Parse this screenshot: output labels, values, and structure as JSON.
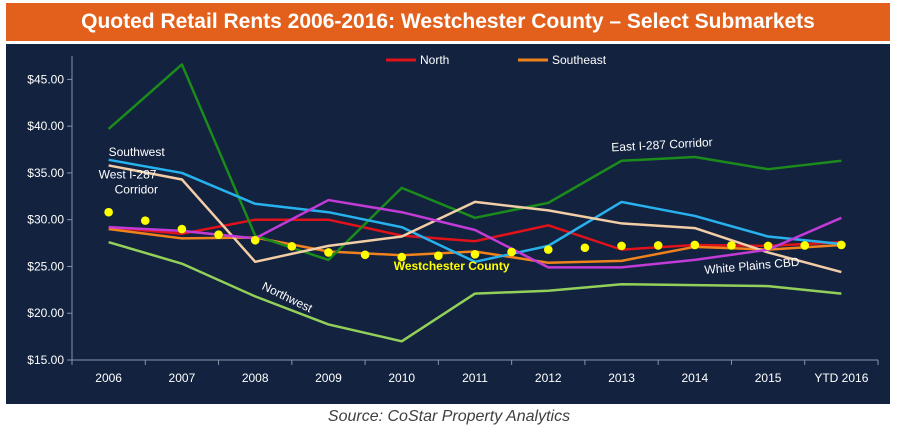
{
  "title": "Quoted Retail Rents 2006-2016:  Westchester County – Select Submarkets",
  "source": "Source:  CoStar Property Analytics",
  "chart_data": {
    "type": "line",
    "categories": [
      "2006",
      "2007",
      "2008",
      "2009",
      "2010",
      "2011",
      "2012",
      "2013",
      "2014",
      "2015",
      "YTD 2016"
    ],
    "ylim": [
      15,
      47.5
    ],
    "yticks": [
      15,
      20,
      25,
      30,
      35,
      40,
      45
    ],
    "ytick_labels": [
      "$15.00",
      "$20.00",
      "$25.00",
      "$30.00",
      "$35.00",
      "$40.00",
      "$45.00"
    ],
    "legend_position": "top",
    "series": [
      {
        "name": "North",
        "color": "#e0121a",
        "values": [
          29.2,
          28.5,
          30.0,
          30.0,
          28.3,
          27.7,
          29.4,
          26.8,
          27.3,
          27.2,
          27.6
        ],
        "in_legend": true
      },
      {
        "name": "Southeast",
        "color": "#f0821e",
        "values": [
          29.0,
          28.0,
          28.1,
          26.6,
          26.2,
          26.6,
          25.4,
          25.6,
          27.1,
          26.8,
          27.3
        ],
        "in_legend": true
      },
      {
        "name": "East I-287 Corridor",
        "color": "#1b8c1b",
        "values": [
          39.7,
          46.6,
          28.3,
          25.7,
          33.4,
          30.2,
          31.8,
          36.3,
          36.7,
          35.4,
          36.3
        ],
        "in_legend": false
      },
      {
        "name": "Southwest",
        "color": "#27b2ee",
        "values": [
          36.4,
          35.0,
          31.7,
          30.8,
          29.2,
          25.5,
          27.2,
          31.9,
          30.4,
          28.2,
          27.4
        ],
        "in_legend": false
      },
      {
        "name": "West I-287 Corridor",
        "color": "#f2cda6",
        "values": [
          35.8,
          34.3,
          25.5,
          27.2,
          28.2,
          31.9,
          31.0,
          29.6,
          29.1,
          26.5,
          24.4
        ],
        "in_legend": false
      },
      {
        "name": "White Plains CBD",
        "color": "#c23bd6",
        "values": [
          29.2,
          28.8,
          28.0,
          32.1,
          30.8,
          28.9,
          24.9,
          24.9,
          25.7,
          26.8,
          30.2
        ],
        "in_legend": false
      },
      {
        "name": "Northwest",
        "color": "#93d05a",
        "values": [
          27.6,
          25.3,
          21.8,
          18.8,
          17.0,
          22.1,
          22.4,
          23.1,
          23.0,
          22.9,
          22.1
        ],
        "in_legend": false
      },
      {
        "name": "Westchester County",
        "color": "#ffff00",
        "values": [
          30.8,
          29.0,
          27.8,
          26.5,
          26.0,
          26.3,
          26.8,
          27.2,
          27.3,
          27.2,
          27.3
        ],
        "dotted": true,
        "in_legend": false
      }
    ],
    "annotations": [
      {
        "text": "Southwest",
        "x": "2006",
        "y": 36.8,
        "color": "#ffffff"
      },
      {
        "text": "West I-287",
        "x": "2006",
        "y": 34.4,
        "color": "#ffffff"
      },
      {
        "text": "Corridor",
        "x": "2006",
        "y": 32.8,
        "color": "#ffffff"
      },
      {
        "text": "East I-287 Corridor",
        "x": "2013",
        "y": 37.3,
        "color": "#ffffff"
      },
      {
        "text": "Westchester County",
        "x": "2010",
        "y": 24.6,
        "color": "#ffff00"
      },
      {
        "text": "White Plains CBD",
        "x": "2014",
        "y": 24.2,
        "color": "#ffffff"
      },
      {
        "text": "Northwest",
        "x": "2008",
        "y": 22.6,
        "color": "#ffffff"
      }
    ]
  }
}
